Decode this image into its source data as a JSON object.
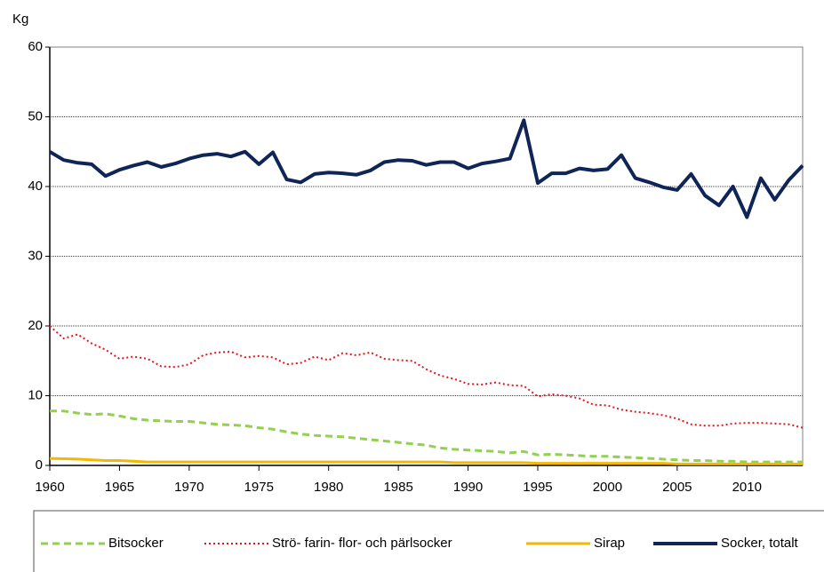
{
  "chart_data": {
    "type": "line",
    "y_label": "Kg",
    "x": [
      1960,
      1961,
      1962,
      1963,
      1964,
      1965,
      1966,
      1967,
      1968,
      1969,
      1970,
      1971,
      1972,
      1973,
      1974,
      1975,
      1976,
      1977,
      1978,
      1979,
      1980,
      1981,
      1982,
      1983,
      1984,
      1985,
      1986,
      1987,
      1988,
      1989,
      1990,
      1991,
      1992,
      1993,
      1994,
      1995,
      1996,
      1997,
      1998,
      1999,
      2000,
      2001,
      2002,
      2003,
      2004,
      2005,
      2006,
      2007,
      2008,
      2009,
      2010,
      2011,
      2012,
      2013,
      2014
    ],
    "xlim": [
      1960,
      2014
    ],
    "xticks": [
      1960,
      1965,
      1970,
      1975,
      1980,
      1985,
      1990,
      1995,
      2000,
      2005,
      2010
    ],
    "ylim": [
      0,
      60
    ],
    "yticks": [
      0,
      10,
      20,
      30,
      40,
      50,
      60
    ],
    "grid": true,
    "series": [
      {
        "name": "Bitsocker",
        "color": "#92d050",
        "linestyle": "dashed",
        "values": [
          7.8,
          7.8,
          7.5,
          7.3,
          7.4,
          7.1,
          6.7,
          6.5,
          6.4,
          6.3,
          6.3,
          6.1,
          5.9,
          5.8,
          5.7,
          5.4,
          5.2,
          4.8,
          4.5,
          4.3,
          4.2,
          4.1,
          3.9,
          3.7,
          3.5,
          3.3,
          3.1,
          2.9,
          2.5,
          2.3,
          2.2,
          2.1,
          2.0,
          1.8,
          2.0,
          1.5,
          1.6,
          1.5,
          1.4,
          1.3,
          1.3,
          1.2,
          1.1,
          1.0,
          0.9,
          0.8,
          0.7,
          0.7,
          0.6,
          0.6,
          0.5,
          0.5,
          0.5,
          0.5,
          0.5
        ]
      },
      {
        "name": "Strö- farin- flor- och pärlsocker",
        "color": "#e8141c",
        "linestyle": "dotted",
        "values": [
          20,
          18.2,
          18.8,
          17.5,
          16.6,
          15.3,
          15.6,
          15.3,
          14.2,
          14.1,
          14.5,
          15.8,
          16.2,
          16.3,
          15.5,
          15.7,
          15.5,
          14.5,
          14.7,
          15.6,
          15.1,
          16.1,
          15.8,
          16.2,
          15.3,
          15.1,
          15.0,
          13.8,
          12.9,
          12.4,
          11.7,
          11.6,
          11.9,
          11.5,
          11.4,
          9.9,
          10.2,
          10.0,
          9.6,
          8.7,
          8.6,
          8.0,
          7.7,
          7.5,
          7.2,
          6.7,
          5.9,
          5.7,
          5.7,
          6.0,
          6.1,
          6.1,
          6.0,
          5.9,
          5.4
        ]
      },
      {
        "name": "Sirap",
        "color": "#f5b800",
        "linestyle": "solid",
        "values": [
          1.0,
          0.95,
          0.9,
          0.8,
          0.7,
          0.7,
          0.6,
          0.5,
          0.5,
          0.5,
          0.5,
          0.5,
          0.5,
          0.5,
          0.5,
          0.5,
          0.5,
          0.5,
          0.5,
          0.5,
          0.5,
          0.5,
          0.5,
          0.5,
          0.5,
          0.5,
          0.5,
          0.5,
          0.5,
          0.4,
          0.4,
          0.4,
          0.4,
          0.4,
          0.4,
          0.3,
          0.3,
          0.3,
          0.3,
          0.3,
          0.3,
          0.3,
          0.3,
          0.3,
          0.3,
          0.2,
          0.2,
          0.2,
          0.2,
          0.2,
          0.2,
          0.2,
          0.2,
          0.2,
          0.2
        ]
      },
      {
        "name": "Socker, totalt",
        "color": "#0f2557",
        "linestyle": "solid",
        "values": [
          45,
          43.8,
          43.4,
          43.2,
          41.5,
          42.4,
          43.0,
          43.5,
          42.8,
          43.3,
          44.0,
          44.5,
          44.7,
          44.3,
          45.0,
          43.2,
          44.9,
          41.0,
          40.6,
          41.8,
          42.0,
          41.9,
          41.7,
          42.3,
          43.5,
          43.8,
          43.7,
          43.1,
          43.5,
          43.5,
          42.6,
          43.3,
          43.6,
          44.0,
          49.5,
          40.5,
          41.9,
          41.9,
          42.6,
          42.3,
          42.5,
          44.5,
          41.2,
          40.6,
          39.9,
          39.5,
          41.8,
          38.7,
          37.3,
          40.0,
          35.6,
          41.2,
          38.1,
          40.9,
          43.0
        ]
      }
    ]
  }
}
